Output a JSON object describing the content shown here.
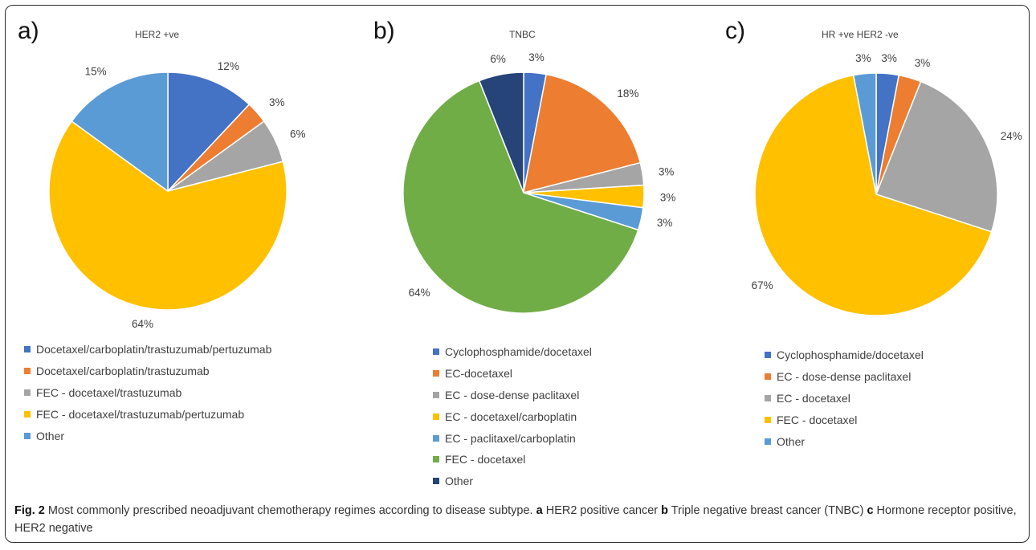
{
  "chart_data": [
    {
      "type": "pie",
      "panel_label": "a)",
      "title": "HER2 +ve",
      "slices": [
        {
          "label": "Docetaxel/carboplatin/trastuzumab/pertuzumab",
          "value": 12,
          "color": "#4472C4"
        },
        {
          "label": "Docetaxel/carboplatin/trastuzumab",
          "value": 3,
          "color": "#ED7D31"
        },
        {
          "label": "FEC - docetaxel/trastuzumab",
          "value": 6,
          "color": "#A5A5A5"
        },
        {
          "label": "FEC - docetaxel/trastuzumab/pertuzumab",
          "value": 64,
          "color": "#FFC000"
        },
        {
          "label": "Other",
          "value": 15,
          "color": "#5B9BD5"
        }
      ],
      "data_labels": [
        "12%",
        "3%",
        "6%",
        "64%",
        "15%"
      ],
      "legend_position": "bottom"
    },
    {
      "type": "pie",
      "panel_label": "b)",
      "title": "TNBC",
      "slices": [
        {
          "label": "Cyclophosphamide/docetaxel",
          "value": 3,
          "color": "#4472C4"
        },
        {
          "label": "EC-docetaxel",
          "value": 18,
          "color": "#ED7D31"
        },
        {
          "label": "EC - dose-dense paclitaxel",
          "value": 3,
          "color": "#A5A5A5"
        },
        {
          "label": "EC - docetaxel/carboplatin",
          "value": 3,
          "color": "#FFC000"
        },
        {
          "label": "EC - paclitaxel/carboplatin",
          "value": 3,
          "color": "#5B9BD5"
        },
        {
          "label": "FEC - docetaxel",
          "value": 64,
          "color": "#70AD47"
        },
        {
          "label": "Other",
          "value": 6,
          "color": "#264478"
        }
      ],
      "data_labels": [
        "3%",
        "18%",
        "3%",
        "3%",
        "3%",
        "64%",
        "6%"
      ],
      "legend_position": "bottom"
    },
    {
      "type": "pie",
      "panel_label": "c)",
      "title": "HR +ve HER2 -ve",
      "slices": [
        {
          "label": "Cyclophosphamide/docetaxel",
          "value": 3,
          "color": "#4472C4"
        },
        {
          "label": "EC - dose-dense paclitaxel",
          "value": 3,
          "color": "#ED7D31"
        },
        {
          "label": "EC - docetaxel",
          "value": 24,
          "color": "#A5A5A5"
        },
        {
          "label": "FEC - docetaxel",
          "value": 67,
          "color": "#FFC000"
        },
        {
          "label": "Other",
          "value": 3,
          "color": "#5B9BD5"
        }
      ],
      "data_labels": [
        "3%",
        "3%",
        "24%",
        "67%",
        "3%"
      ],
      "legend_position": "bottom"
    }
  ],
  "caption": {
    "fig_label": "Fig. 2",
    "text_1": " Most commonly prescribed neoadjuvant chemotherapy regimes according to disease subtype. ",
    "a": "a",
    "text_a": " HER2 positive cancer ",
    "b": "b",
    "text_b": " Triple negative breast cancer (TNBC) ",
    "c": "c",
    "text_c": " Hormone receptor positive, HER2 negative"
  }
}
